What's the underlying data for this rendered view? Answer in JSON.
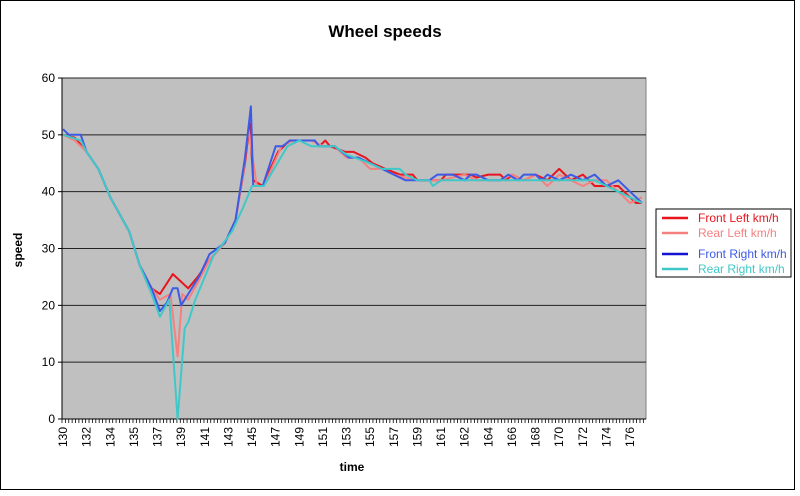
{
  "chart_data": {
    "type": "line",
    "title": "Wheel speeds",
    "xlabel": "time",
    "ylabel": "speed",
    "ylim": [
      0,
      60
    ],
    "yticks": [
      0,
      10,
      20,
      30,
      40,
      50,
      60
    ],
    "x_tick_labels": [
      "130",
      "132",
      "134",
      "135",
      "137",
      "139",
      "141",
      "143",
      "145",
      "147",
      "149",
      "151",
      "153",
      "155",
      "157",
      "159",
      "161",
      "162",
      "164",
      "166",
      "168",
      "170",
      "172",
      "174",
      "176"
    ],
    "grid": "horizontal major gridlines",
    "plot_background": "#c0c0c0",
    "legend_position": "right",
    "series": [
      {
        "name": "Front Left km/h",
        "color": "#e8141e",
        "points": [
          [
            130,
            50
          ],
          [
            131,
            49.5
          ],
          [
            132,
            47
          ],
          [
            133,
            44
          ],
          [
            134,
            39
          ],
          [
            134.8,
            33
          ],
          [
            135.5,
            27
          ],
          [
            136.5,
            23
          ],
          [
            137.2,
            22
          ],
          [
            138.3,
            25.5
          ],
          [
            139.6,
            23
          ],
          [
            140.4,
            25
          ],
          [
            141.4,
            28
          ],
          [
            142.7,
            31
          ],
          [
            143.6,
            35
          ],
          [
            144.4,
            45
          ],
          [
            144.8,
            52
          ],
          [
            145.1,
            42
          ],
          [
            145.9,
            41
          ],
          [
            147.2,
            47
          ],
          [
            148.2,
            49
          ],
          [
            150.3,
            49
          ],
          [
            150.7,
            48
          ],
          [
            151.2,
            49
          ],
          [
            151.6,
            48
          ],
          [
            152.9,
            47
          ],
          [
            153.6,
            47
          ],
          [
            154.6,
            46
          ],
          [
            155.2,
            45
          ],
          [
            156.3,
            44
          ],
          [
            157.5,
            43
          ],
          [
            158.6,
            43
          ],
          [
            159,
            42
          ],
          [
            161,
            42
          ],
          [
            161.2,
            43
          ],
          [
            162,
            43
          ],
          [
            162.5,
            43
          ],
          [
            163,
            42.5
          ],
          [
            164,
            43
          ],
          [
            165,
            43
          ],
          [
            165.5,
            42
          ],
          [
            166,
            43
          ],
          [
            167,
            42
          ],
          [
            168,
            43
          ],
          [
            169,
            42
          ],
          [
            170,
            44
          ],
          [
            170.5,
            43
          ],
          [
            171,
            42
          ],
          [
            172,
            43
          ],
          [
            173,
            41
          ],
          [
            174,
            41
          ],
          [
            175,
            41
          ],
          [
            175.5,
            40
          ],
          [
            176,
            39
          ],
          [
            176.5,
            38
          ],
          [
            177,
            38
          ]
        ]
      },
      {
        "name": "Rear Left km/h",
        "color": "#f58080",
        "points": [
          [
            130,
            50
          ],
          [
            131,
            49
          ],
          [
            132,
            47
          ],
          [
            133,
            44
          ],
          [
            134,
            39
          ],
          [
            134.8,
            33
          ],
          [
            135.5,
            27
          ],
          [
            136.5,
            23
          ],
          [
            137.2,
            21
          ],
          [
            138.1,
            22
          ],
          [
            138.7,
            11
          ],
          [
            139.1,
            22
          ],
          [
            139.6,
            21
          ],
          [
            140.4,
            24
          ],
          [
            141.4,
            28
          ],
          [
            142.7,
            31
          ],
          [
            143.6,
            35
          ],
          [
            144.3,
            44
          ],
          [
            144.7,
            51
          ],
          [
            145.4,
            41
          ],
          [
            146,
            41
          ],
          [
            147.5,
            48
          ],
          [
            148.5,
            49
          ],
          [
            150,
            49
          ],
          [
            151,
            48
          ],
          [
            152,
            48
          ],
          [
            153,
            46
          ],
          [
            154,
            46
          ],
          [
            155,
            44
          ],
          [
            156,
            44
          ],
          [
            157,
            43
          ],
          [
            159,
            42
          ],
          [
            161,
            42
          ],
          [
            162,
            43
          ],
          [
            163,
            42
          ],
          [
            164,
            42
          ],
          [
            165,
            42
          ],
          [
            166,
            43
          ],
          [
            167,
            42
          ],
          [
            168,
            43
          ],
          [
            169,
            41
          ],
          [
            170,
            43
          ],
          [
            171,
            42
          ],
          [
            172,
            41
          ],
          [
            173,
            42
          ],
          [
            174,
            42
          ],
          [
            175,
            40
          ],
          [
            176,
            38
          ],
          [
            177,
            39
          ]
        ]
      },
      {
        "name": "Front Right km/h",
        "color": "#3c5ae6",
        "legend_color": "#1414d2",
        "points": [
          [
            130,
            51
          ],
          [
            130.5,
            50
          ],
          [
            131.5,
            50
          ],
          [
            132,
            47
          ],
          [
            133,
            44
          ],
          [
            134,
            39
          ],
          [
            134.8,
            33
          ],
          [
            135.5,
            27
          ],
          [
            136.5,
            23
          ],
          [
            137.2,
            19
          ],
          [
            137.8,
            20.5
          ],
          [
            138.3,
            23
          ],
          [
            138.7,
            23
          ],
          [
            139,
            20
          ],
          [
            139.6,
            22
          ],
          [
            140.5,
            25
          ],
          [
            141.4,
            29
          ],
          [
            142.7,
            31
          ],
          [
            143.6,
            35
          ],
          [
            144.4,
            46
          ],
          [
            144.9,
            55
          ],
          [
            145.1,
            41
          ],
          [
            145.9,
            41
          ],
          [
            147,
            48
          ],
          [
            147.6,
            48
          ],
          [
            148.2,
            49
          ],
          [
            150.3,
            49
          ],
          [
            150.7,
            48
          ],
          [
            152,
            48
          ],
          [
            152.6,
            47
          ],
          [
            153.2,
            46
          ],
          [
            154,
            46
          ],
          [
            155,
            45
          ],
          [
            156,
            44
          ],
          [
            157,
            43
          ],
          [
            158,
            42
          ],
          [
            160,
            42
          ],
          [
            160.7,
            43
          ],
          [
            161.5,
            43
          ],
          [
            162,
            42
          ],
          [
            162.5,
            43
          ],
          [
            163,
            43
          ],
          [
            164,
            42
          ],
          [
            165,
            42
          ],
          [
            165.7,
            43
          ],
          [
            166.5,
            42
          ],
          [
            167,
            43
          ],
          [
            168,
            43
          ],
          [
            168.5,
            42
          ],
          [
            169,
            43
          ],
          [
            170,
            42
          ],
          [
            171,
            43
          ],
          [
            172,
            42
          ],
          [
            173,
            43
          ],
          [
            174,
            41
          ],
          [
            175,
            42
          ],
          [
            176,
            40
          ],
          [
            177,
            38
          ]
        ]
      },
      {
        "name": "Rear Right km/h",
        "color": "#40c8c8",
        "points": [
          [
            130,
            50
          ],
          [
            131.5,
            49
          ],
          [
            132,
            47
          ],
          [
            133,
            44
          ],
          [
            134,
            39
          ],
          [
            134.8,
            33
          ],
          [
            135.5,
            27
          ],
          [
            136.5,
            22
          ],
          [
            137.2,
            18
          ],
          [
            138,
            21
          ],
          [
            138.7,
            0
          ],
          [
            139.3,
            16
          ],
          [
            139.6,
            17
          ],
          [
            140.2,
            21
          ],
          [
            141,
            25
          ],
          [
            141.8,
            29
          ],
          [
            142.6,
            31
          ],
          [
            143.3,
            33
          ],
          [
            144.2,
            37
          ],
          [
            145,
            41
          ],
          [
            146,
            41
          ],
          [
            148,
            48
          ],
          [
            149,
            49
          ],
          [
            150,
            48
          ],
          [
            152,
            48
          ],
          [
            153,
            46.5
          ],
          [
            155,
            45
          ],
          [
            156,
            44
          ],
          [
            157.5,
            44
          ],
          [
            158,
            43
          ],
          [
            159,
            42
          ],
          [
            160,
            42
          ],
          [
            160.3,
            41
          ],
          [
            161,
            42
          ],
          [
            173,
            42
          ],
          [
            174,
            41
          ],
          [
            175,
            40
          ],
          [
            176,
            39
          ],
          [
            177,
            38
          ]
        ]
      }
    ]
  }
}
